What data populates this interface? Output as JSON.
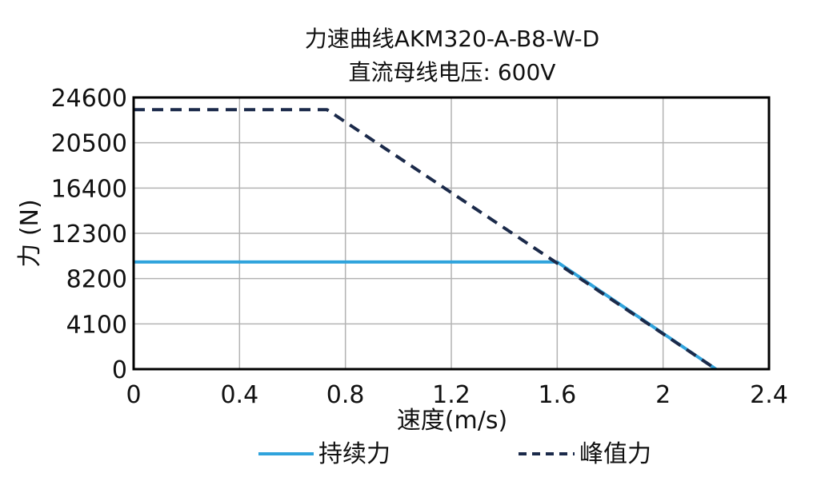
{
  "chart_data": {
    "type": "line",
    "title": "力速曲线AKM320-A-B8-W-D",
    "subtitle": "直流母线电压: 600V",
    "xlabel": "速度(m/s)",
    "ylabel": "力 (N)",
    "xlim": [
      0,
      2.4
    ],
    "ylim": [
      0,
      24600
    ],
    "x_ticks": [
      "0",
      "0.4",
      "0.8",
      "1.2",
      "1.6",
      "2",
      "2.4"
    ],
    "y_ticks": [
      "0",
      "4100",
      "8200",
      "12300",
      "16400",
      "20500",
      "24600"
    ],
    "grid": true,
    "legend_position": "bottom",
    "series": [
      {
        "name": "持续力",
        "color": "#2fa3dc",
        "style": "solid",
        "x": [
          0,
          1.6,
          2.2
        ],
        "y": [
          9700,
          9700,
          0
        ]
      },
      {
        "name": "峰值力",
        "color": "#1b2a4a",
        "style": "dashed",
        "x": [
          0,
          0.73,
          2.2
        ],
        "y": [
          23500,
          23500,
          0
        ]
      }
    ]
  }
}
